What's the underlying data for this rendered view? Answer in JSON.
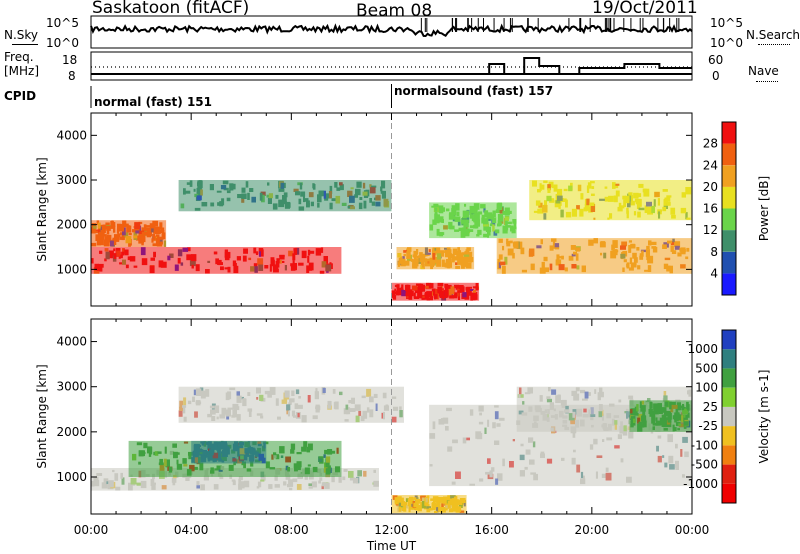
{
  "header": {
    "station": "Saskatoon (fitACF)",
    "beam": "Beam 08",
    "date": "19/Oct/2011"
  },
  "top_panel": {
    "left_label": "N.Sky",
    "right_label": "N.Search",
    "left_ticks": [
      "10^5",
      "10^0"
    ],
    "right_ticks": [
      "10^5",
      "10^0"
    ]
  },
  "freq_panel": {
    "left_label_1": "Freq.",
    "left_label_2": "[MHz]",
    "left_ticks": [
      "18",
      "8"
    ],
    "right_label": "Nave",
    "right_ticks": [
      "60",
      "0"
    ]
  },
  "cpid": {
    "label": "CPID",
    "modes": [
      "normal (fast) 151",
      "normalsound (fast) 157"
    ]
  },
  "chart_data": [
    {
      "type": "heatmap",
      "title": "",
      "ylabel": "Slant Range [km]",
      "xlabel": "",
      "x_range_hours": [
        0,
        24
      ],
      "y_range_km": [
        180,
        4500
      ],
      "y_ticks": [
        "1000",
        "2000",
        "3000",
        "4000"
      ],
      "x_ticks": [
        "00:00",
        "04:00",
        "08:00",
        "12:00",
        "16:00",
        "20:00",
        "00:00"
      ],
      "colorbar": {
        "label": "Power [dB]",
        "ticks": [
          "4",
          "8",
          "12",
          "16",
          "20",
          "24",
          "28"
        ],
        "colors": [
          "#1a1aff",
          "#2050b0",
          "#3f8f6a",
          "#6ad44a",
          "#e8e020",
          "#f0a020",
          "#f06010",
          "#f01010"
        ]
      },
      "bands": [
        {
          "t0": 0.0,
          "t1": 10.0,
          "r0": 900,
          "r1": 1500,
          "level": 28
        },
        {
          "t0": 0.0,
          "t1": 3.0,
          "r0": 1500,
          "r1": 2100,
          "level": 22
        },
        {
          "t0": 3.5,
          "t1": 12.0,
          "r0": 2300,
          "r1": 3000,
          "level": 8
        },
        {
          "t0": 12.0,
          "t1": 15.5,
          "r0": 300,
          "r1": 700,
          "level": 26
        },
        {
          "t0": 12.2,
          "t1": 15.3,
          "r0": 1000,
          "r1": 1500,
          "level": 18
        },
        {
          "t0": 16.2,
          "t1": 24.0,
          "r0": 900,
          "r1": 1700,
          "level": 20
        },
        {
          "t0": 17.5,
          "t1": 24.0,
          "r0": 2100,
          "r1": 3000,
          "level": 14
        },
        {
          "t0": 13.5,
          "t1": 17.0,
          "r0": 1700,
          "r1": 2500,
          "level": 10
        }
      ]
    },
    {
      "type": "heatmap",
      "title": "",
      "ylabel": "Slant Range [km]",
      "xlabel": "Time UT",
      "x_range_hours": [
        0,
        24
      ],
      "y_range_km": [
        180,
        4500
      ],
      "y_ticks": [
        "1000",
        "2000",
        "3000",
        "4000"
      ],
      "x_ticks": [
        "00:00",
        "04:00",
        "08:00",
        "12:00",
        "16:00",
        "20:00",
        "00:00"
      ],
      "colorbar": {
        "label": "Velocity [m s-1]",
        "ticks": [
          "1000",
          "500",
          "100",
          "25",
          "-25",
          "-100",
          "-500",
          "-1000"
        ],
        "colors": [
          "#2040c0",
          "#2f7f7f",
          "#40a040",
          "#80d030",
          "#c8c8c0",
          "#f0c020",
          "#f08010",
          "#e02010",
          "#f00000"
        ]
      },
      "bands": [
        {
          "t0": 0.0,
          "t1": 11.5,
          "r0": 700,
          "r1": 1200,
          "level": "ground"
        },
        {
          "t0": 1.5,
          "t1": 10.0,
          "r0": 1000,
          "r1": 1800,
          "level": 100
        },
        {
          "t0": 4.0,
          "t1": 7.0,
          "r0": 1300,
          "r1": 1800,
          "level": 500
        },
        {
          "t0": 3.5,
          "t1": 12.5,
          "r0": 2200,
          "r1": 3000,
          "level": "ground"
        },
        {
          "t0": 12.0,
          "t1": 15.0,
          "r0": 200,
          "r1": 600,
          "level": -100
        },
        {
          "t0": 13.5,
          "t1": 24.0,
          "r0": 800,
          "r1": 2600,
          "level": "ground"
        },
        {
          "t0": 17.0,
          "t1": 24.0,
          "r0": 2000,
          "r1": 3000,
          "level": "ground"
        },
        {
          "t0": 21.5,
          "t1": 24.0,
          "r0": 2000,
          "r1": 2700,
          "level": 100
        }
      ]
    }
  ],
  "axis": {
    "time_label": "Time UT"
  }
}
